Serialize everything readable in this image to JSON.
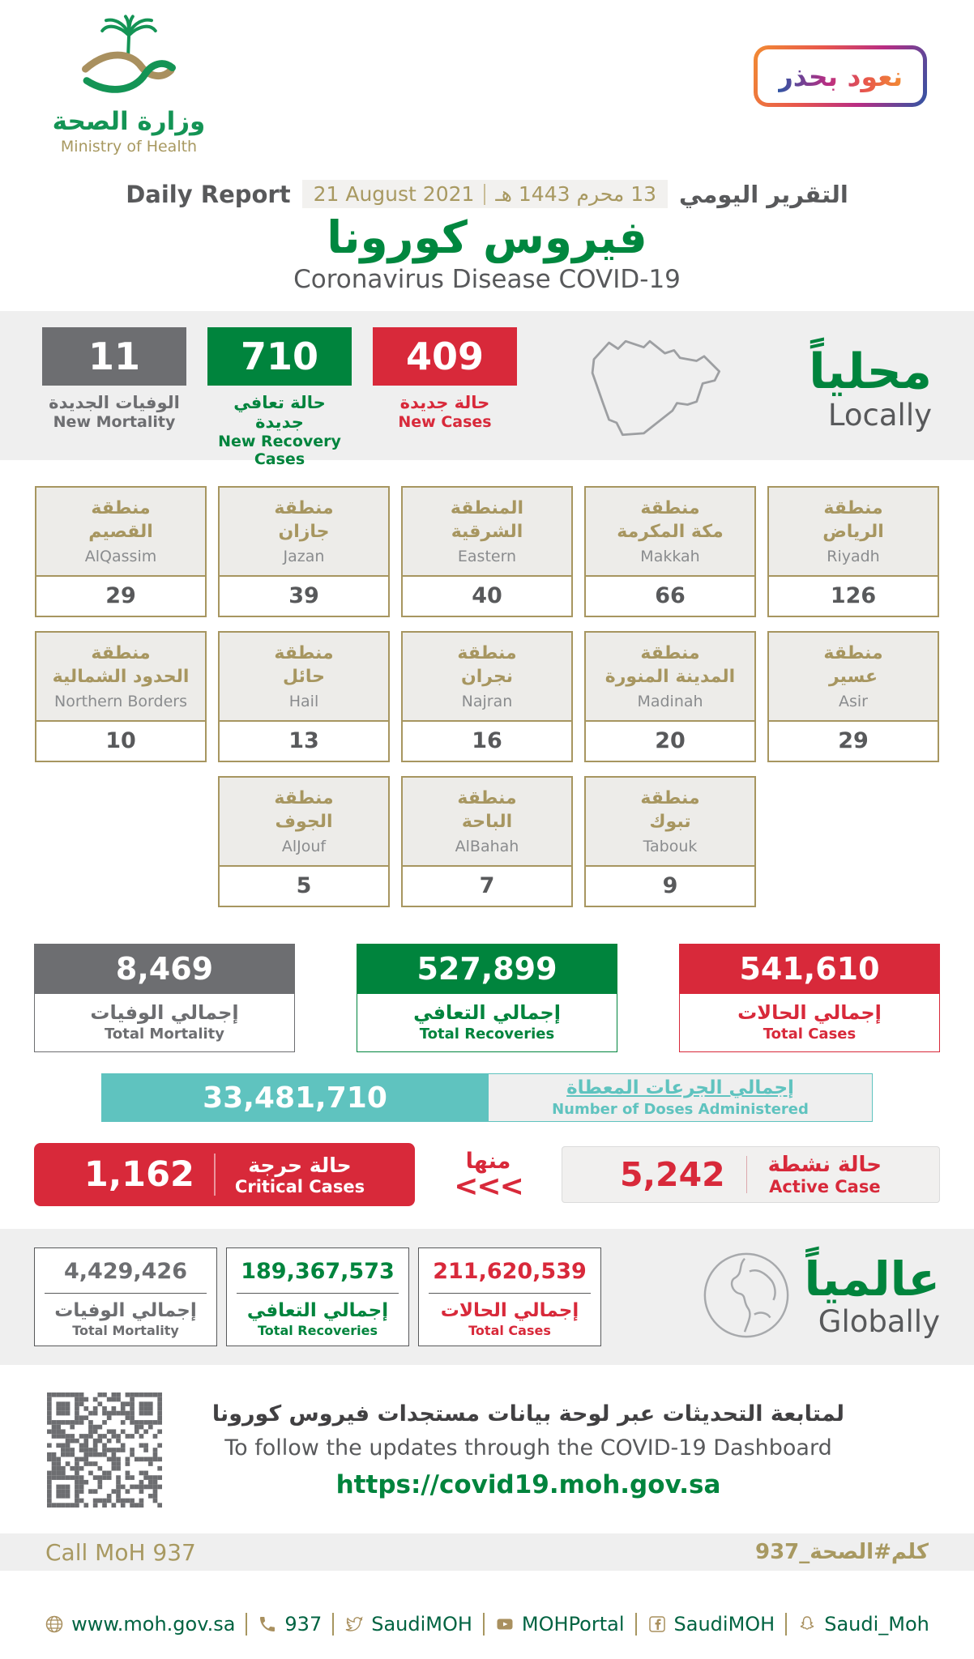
{
  "colors": {
    "green": "#00843D",
    "red": "#D8293A",
    "gray": "#6D6E71",
    "gold": "#A89961",
    "teal": "#5FC3BF",
    "band_background": "#EFEFEF"
  },
  "header": {
    "logo_ar": "وزارة الصحة",
    "logo_en": "Ministry of Health",
    "badge": "نعود بحذر",
    "daily_report_en": "Daily Report",
    "date_gregorian": "21 August 2021",
    "date_hijri": "13 محرم 1443 هـ",
    "daily_report_ar": "التقرير اليومي",
    "title_ar": "فيروس كورونا",
    "title_en": "Coronavirus Disease COVID-19"
  },
  "locally": {
    "title_ar": "محلياً",
    "title_en": "Locally",
    "new_mortality": {
      "value": "11",
      "label_ar": "الوفيات الجديدة",
      "label_en": "New Mortality"
    },
    "new_recovery": {
      "value": "710",
      "label_ar": "حالة تعافي جديدة",
      "label_en": "New Recovery Cases"
    },
    "new_cases": {
      "value": "409",
      "label_ar": "حالة جديدة",
      "label_en": "New Cases"
    }
  },
  "regions": {
    "items": [
      {
        "ar1": "منطقة",
        "ar2": "القصيم",
        "en": "AlQassim",
        "value": "29"
      },
      {
        "ar1": "منطقة",
        "ar2": "جازان",
        "en": "Jazan",
        "value": "39"
      },
      {
        "ar1": "المنطقة",
        "ar2": "الشرقية",
        "en": "Eastern",
        "value": "40"
      },
      {
        "ar1": "منطقة",
        "ar2": "مكة المكرمة",
        "en": "Makkah",
        "value": "66"
      },
      {
        "ar1": "منطقة",
        "ar2": "الرياض",
        "en": "Riyadh",
        "value": "126"
      },
      {
        "ar1": "منطقة",
        "ar2": "الحدود الشمالية",
        "en": "Northern Borders",
        "value": "10"
      },
      {
        "ar1": "منطقة",
        "ar2": "حائل",
        "en": "Hail",
        "value": "13"
      },
      {
        "ar1": "منطقة",
        "ar2": "نجران",
        "en": "Najran",
        "value": "16"
      },
      {
        "ar1": "منطقة",
        "ar2": "المدينة المنورة",
        "en": "Madinah",
        "value": "20"
      },
      {
        "ar1": "منطقة",
        "ar2": "عسير",
        "en": "Asir",
        "value": "29"
      },
      {
        "ar1": "منطقة",
        "ar2": "الجوف",
        "en": "AlJouf",
        "value": "5"
      },
      {
        "ar1": "منطقة",
        "ar2": "الباحة",
        "en": "AlBahah",
        "value": "7"
      },
      {
        "ar1": "منطقة",
        "ar2": "تبوك",
        "en": "Tabouk",
        "value": "9"
      }
    ]
  },
  "totals": {
    "mortality": {
      "value": "8,469",
      "label_ar": "إجمالي الوفيات",
      "label_en": "Total Mortality"
    },
    "recoveries": {
      "value": "527,899",
      "label_ar": "إجمالي التعافي",
      "label_en": "Total Recoveries"
    },
    "cases": {
      "value": "541,610",
      "label_ar": "إجمالي الحالات",
      "label_en": "Total Cases"
    }
  },
  "doses": {
    "value": "33,481,710",
    "label_ar": "إجمالي الجرعات المعطاة",
    "label_en": "Number of Doses Administered"
  },
  "critical": {
    "value": "1,162",
    "label_ar": "حالة حرجة",
    "label_en": "Critical Cases"
  },
  "of_which": {
    "label_ar": "منها",
    "chevrons": "<<<"
  },
  "active": {
    "value": "5,242",
    "label_ar": "حالة نشطة",
    "label_en": "Active Case"
  },
  "globally": {
    "title_ar": "عالمياً",
    "title_en": "Globally",
    "mortality": {
      "value": "4,429,426",
      "label_ar": "إجمالي الوفيات",
      "label_en": "Total Mortality"
    },
    "recoveries": {
      "value": "189,367,573",
      "label_ar": "إجمالي التعافي",
      "label_en": "Total Recoveries"
    },
    "cases": {
      "value": "211,620,539",
      "label_ar": "إجمالي الحالات",
      "label_en": "Total Cases"
    }
  },
  "dashboard": {
    "line_ar": "لمتابعة التحديثات عبر لوحة بيانات مستجدات فيروس كورونا",
    "line_en": "To follow the updates through the COVID-19 Dashboard",
    "url": "https://covid19.moh.gov.sa"
  },
  "call": {
    "en": "Call MoH 937",
    "ar": "كلم#الصحة_937"
  },
  "footer": {
    "links": [
      {
        "icon": "globe-icon",
        "label": "www.moh.gov.sa"
      },
      {
        "icon": "phone-icon",
        "label": "937"
      },
      {
        "icon": "twitter-icon",
        "label": "SaudiMOH"
      },
      {
        "icon": "youtube-icon",
        "label": "MOHPortal"
      },
      {
        "icon": "facebook-icon",
        "label": "SaudiMOH"
      },
      {
        "icon": "snapchat-icon",
        "label": "Saudi_Moh"
      }
    ]
  }
}
